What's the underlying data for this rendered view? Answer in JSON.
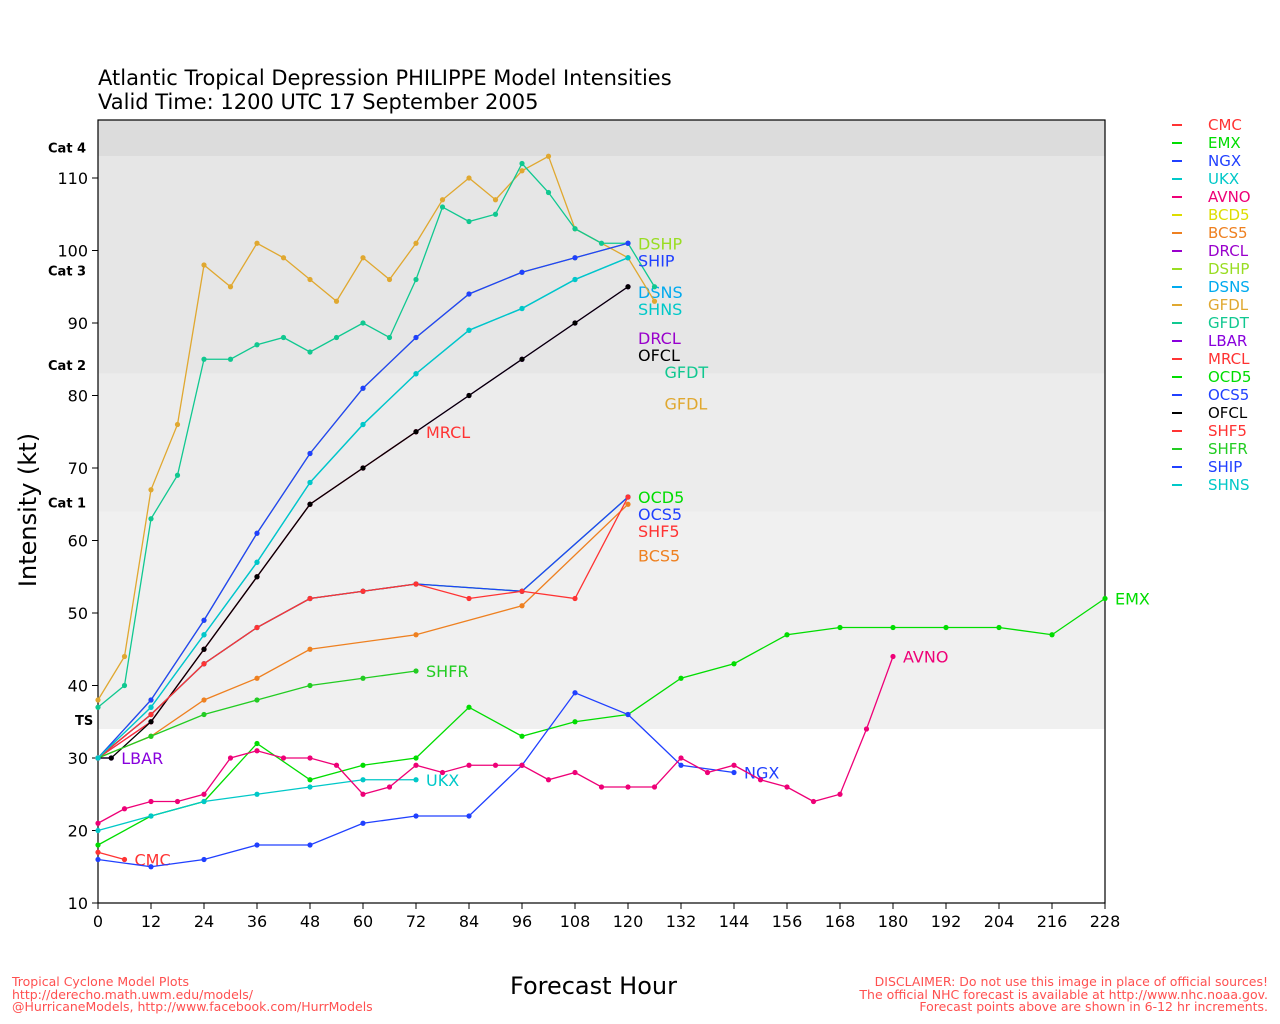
{
  "title": {
    "line1": "Atlantic Tropical Depression PHILIPPE Model Intensities",
    "line2": "Valid Time: 1200 UTC 17 September 2005"
  },
  "footer": {
    "left": [
      "Tropical Cyclone Model Plots",
      "http://derecho.math.uwm.edu/models/",
      "@HurricaneModels, http://www.facebook.com/HurrModels"
    ],
    "right": [
      "DISCLAIMER: Do not use this image in place of official sources!",
      "The official NHC forecast is available at http://www.nhc.noaa.gov.",
      "Forecast points above are shown in 6-12 hr increments."
    ]
  },
  "chart_data": {
    "type": "line",
    "xlabel": "Forecast Hour",
    "ylabel": "Intensity (kt)",
    "xlim": [
      0,
      228
    ],
    "ylim": [
      10,
      118
    ],
    "xticks": [
      0,
      12,
      24,
      36,
      48,
      60,
      72,
      84,
      96,
      108,
      120,
      132,
      144,
      156,
      168,
      180,
      192,
      204,
      216,
      228
    ],
    "yticks": [
      10,
      20,
      30,
      40,
      50,
      60,
      70,
      80,
      90,
      100,
      110
    ],
    "categories": [
      {
        "label": "TS",
        "value": 34
      },
      {
        "label": "Cat 1",
        "value": 64
      },
      {
        "label": "Cat 2",
        "value": 83
      },
      {
        "label": "Cat 3",
        "value": 96
      },
      {
        "label": "Cat 4",
        "value": 113
      }
    ],
    "legend_position": "right-outside",
    "series": [
      {
        "name": "CMC",
        "color": "#ff3333",
        "points": [
          [
            0,
            17
          ],
          [
            6,
            16
          ]
        ]
      },
      {
        "name": "EMX",
        "color": "#00dd00",
        "points": [
          [
            0,
            18
          ],
          [
            12,
            22
          ],
          [
            24,
            24
          ],
          [
            36,
            32
          ],
          [
            48,
            27
          ],
          [
            60,
            29
          ],
          [
            72,
            30
          ],
          [
            84,
            37
          ],
          [
            96,
            33
          ],
          [
            108,
            35
          ],
          [
            120,
            36
          ],
          [
            132,
            41
          ],
          [
            144,
            43
          ],
          [
            156,
            47
          ],
          [
            168,
            48
          ],
          [
            180,
            48
          ],
          [
            192,
            48
          ],
          [
            204,
            48
          ],
          [
            216,
            47
          ],
          [
            228,
            52
          ]
        ]
      },
      {
        "name": "NGX",
        "color": "#2040ff",
        "points": [
          [
            0,
            16
          ],
          [
            12,
            15
          ],
          [
            24,
            16
          ],
          [
            36,
            18
          ],
          [
            48,
            18
          ],
          [
            60,
            21
          ],
          [
            72,
            22
          ],
          [
            84,
            22
          ],
          [
            96,
            29
          ],
          [
            108,
            39
          ],
          [
            120,
            36
          ],
          [
            132,
            29
          ],
          [
            144,
            28
          ]
        ]
      },
      {
        "name": "UKX",
        "color": "#00c8c8",
        "points": [
          [
            0,
            20
          ],
          [
            12,
            22
          ],
          [
            24,
            24
          ],
          [
            36,
            25
          ],
          [
            48,
            26
          ],
          [
            60,
            27
          ],
          [
            72,
            27
          ]
        ]
      },
      {
        "name": "AVNO",
        "color": "#ee0077",
        "points": [
          [
            0,
            21
          ],
          [
            6,
            23
          ],
          [
            12,
            24
          ],
          [
            18,
            24
          ],
          [
            24,
            25
          ],
          [
            30,
            30
          ],
          [
            36,
            31
          ],
          [
            42,
            30
          ],
          [
            48,
            30
          ],
          [
            54,
            29
          ],
          [
            60,
            25
          ],
          [
            66,
            26
          ],
          [
            72,
            29
          ],
          [
            78,
            28
          ],
          [
            84,
            29
          ],
          [
            90,
            29
          ],
          [
            96,
            29
          ],
          [
            102,
            27
          ],
          [
            108,
            28
          ],
          [
            114,
            26
          ],
          [
            120,
            26
          ],
          [
            126,
            26
          ],
          [
            132,
            30
          ],
          [
            138,
            28
          ],
          [
            144,
            29
          ],
          [
            150,
            27
          ],
          [
            156,
            26
          ],
          [
            162,
            24
          ],
          [
            168,
            25
          ],
          [
            174,
            34
          ],
          [
            180,
            44
          ]
        ]
      },
      {
        "name": "BCD5",
        "color": "#dddd00",
        "points": []
      },
      {
        "name": "BCS5",
        "color": "#ee8020",
        "points": [
          [
            0,
            30
          ],
          [
            12,
            33
          ],
          [
            24,
            38
          ],
          [
            36,
            41
          ],
          [
            48,
            45
          ],
          [
            72,
            47
          ],
          [
            96,
            51
          ],
          [
            120,
            65
          ]
        ]
      },
      {
        "name": "DRCL",
        "color": "#9900cc",
        "points": [
          [
            0,
            30
          ],
          [
            12,
            35
          ],
          [
            24,
            45
          ],
          [
            36,
            55
          ],
          [
            48,
            65
          ],
          [
            60,
            70
          ],
          [
            72,
            75
          ],
          [
            84,
            80
          ],
          [
            96,
            85
          ],
          [
            108,
            90
          ],
          [
            120,
            95
          ]
        ]
      },
      {
        "name": "DSHP",
        "color": "#99dd22",
        "points": [
          [
            0,
            30
          ],
          [
            12,
            38
          ],
          [
            24,
            49
          ],
          [
            36,
            61
          ],
          [
            48,
            72
          ],
          [
            60,
            81
          ],
          [
            72,
            88
          ],
          [
            84,
            94
          ],
          [
            96,
            97
          ],
          [
            108,
            99
          ],
          [
            120,
            101
          ]
        ]
      },
      {
        "name": "DSNS",
        "color": "#00aaee",
        "points": [
          [
            0,
            30
          ],
          [
            12,
            37
          ],
          [
            24,
            47
          ],
          [
            36,
            57
          ],
          [
            48,
            68
          ],
          [
            60,
            76
          ],
          [
            72,
            83
          ],
          [
            84,
            89
          ],
          [
            96,
            92
          ],
          [
            108,
            96
          ],
          [
            120,
            99
          ]
        ]
      },
      {
        "name": "GFDL",
        "color": "#e0a830",
        "points": [
          [
            0,
            38
          ],
          [
            6,
            44
          ],
          [
            12,
            67
          ],
          [
            18,
            76
          ],
          [
            24,
            98
          ],
          [
            30,
            95
          ],
          [
            36,
            101
          ],
          [
            42,
            99
          ],
          [
            48,
            96
          ],
          [
            54,
            93
          ],
          [
            60,
            99
          ],
          [
            66,
            96
          ],
          [
            72,
            101
          ],
          [
            78,
            107
          ],
          [
            84,
            110
          ],
          [
            90,
            107
          ],
          [
            96,
            111
          ],
          [
            102,
            113
          ],
          [
            108,
            103
          ],
          [
            120,
            99
          ],
          [
            126,
            93
          ]
        ]
      },
      {
        "name": "GFDT",
        "color": "#10c890",
        "points": [
          [
            0,
            37
          ],
          [
            6,
            40
          ],
          [
            12,
            63
          ],
          [
            18,
            69
          ],
          [
            24,
            85
          ],
          [
            30,
            85
          ],
          [
            36,
            87
          ],
          [
            42,
            88
          ],
          [
            48,
            86
          ],
          [
            54,
            88
          ],
          [
            60,
            90
          ],
          [
            66,
            88
          ],
          [
            72,
            96
          ],
          [
            78,
            106
          ],
          [
            84,
            104
          ],
          [
            90,
            105
          ],
          [
            96,
            112
          ],
          [
            102,
            108
          ],
          [
            108,
            103
          ],
          [
            114,
            101
          ],
          [
            120,
            101
          ],
          [
            126,
            95
          ]
        ]
      },
      {
        "name": "LBAR",
        "color": "#8800dd",
        "points": [
          [
            0,
            30
          ],
          [
            3,
            30
          ]
        ]
      },
      {
        "name": "MRCL",
        "color": "#ff3333",
        "points": [
          [
            0,
            30
          ],
          [
            12,
            35
          ],
          [
            24,
            45
          ],
          [
            36,
            55
          ],
          [
            48,
            65
          ],
          [
            60,
            70
          ],
          [
            72,
            75
          ]
        ]
      },
      {
        "name": "OCD5",
        "color": "#00dd00",
        "points": [
          [
            0,
            30
          ],
          [
            12,
            36
          ],
          [
            24,
            43
          ],
          [
            36,
            48
          ],
          [
            48,
            52
          ],
          [
            60,
            53
          ],
          [
            72,
            54
          ],
          [
            96,
            53
          ],
          [
            120,
            66
          ]
        ]
      },
      {
        "name": "OCS5",
        "color": "#2040ff",
        "points": [
          [
            0,
            30
          ],
          [
            12,
            36
          ],
          [
            24,
            43
          ],
          [
            36,
            48
          ],
          [
            48,
            52
          ],
          [
            60,
            53
          ],
          [
            72,
            54
          ],
          [
            96,
            53
          ],
          [
            120,
            66
          ]
        ]
      },
      {
        "name": "OFCL",
        "color": "#000000",
        "points": [
          [
            0,
            30
          ],
          [
            3,
            30
          ],
          [
            12,
            35
          ],
          [
            24,
            45
          ],
          [
            36,
            55
          ],
          [
            48,
            65
          ],
          [
            60,
            70
          ],
          [
            72,
            75
          ],
          [
            84,
            80
          ],
          [
            96,
            85
          ],
          [
            108,
            90
          ],
          [
            120,
            95
          ]
        ]
      },
      {
        "name": "SHF5",
        "color": "#ff3333",
        "points": [
          [
            0,
            30
          ],
          [
            12,
            36
          ],
          [
            24,
            43
          ],
          [
            36,
            48
          ],
          [
            48,
            52
          ],
          [
            60,
            53
          ],
          [
            72,
            54
          ],
          [
            84,
            52
          ],
          [
            96,
            53
          ],
          [
            108,
            52
          ],
          [
            120,
            66
          ]
        ]
      },
      {
        "name": "SHFR",
        "color": "#22cc22",
        "points": [
          [
            0,
            30
          ],
          [
            12,
            33
          ],
          [
            24,
            36
          ],
          [
            36,
            38
          ],
          [
            48,
            40
          ],
          [
            60,
            41
          ],
          [
            72,
            42
          ]
        ]
      },
      {
        "name": "SHIP",
        "color": "#2040ff",
        "points": [
          [
            0,
            30
          ],
          [
            12,
            38
          ],
          [
            24,
            49
          ],
          [
            36,
            61
          ],
          [
            48,
            72
          ],
          [
            60,
            81
          ],
          [
            72,
            88
          ],
          [
            84,
            94
          ],
          [
            96,
            97
          ],
          [
            108,
            99
          ],
          [
            120,
            101
          ]
        ]
      },
      {
        "name": "SHNS",
        "color": "#00c8c8",
        "points": [
          [
            0,
            30
          ],
          [
            12,
            37
          ],
          [
            24,
            47
          ],
          [
            36,
            57
          ],
          [
            48,
            68
          ],
          [
            60,
            76
          ],
          [
            72,
            83
          ],
          [
            84,
            89
          ],
          [
            96,
            92
          ],
          [
            108,
            96
          ],
          [
            120,
            99
          ]
        ]
      }
    ]
  }
}
